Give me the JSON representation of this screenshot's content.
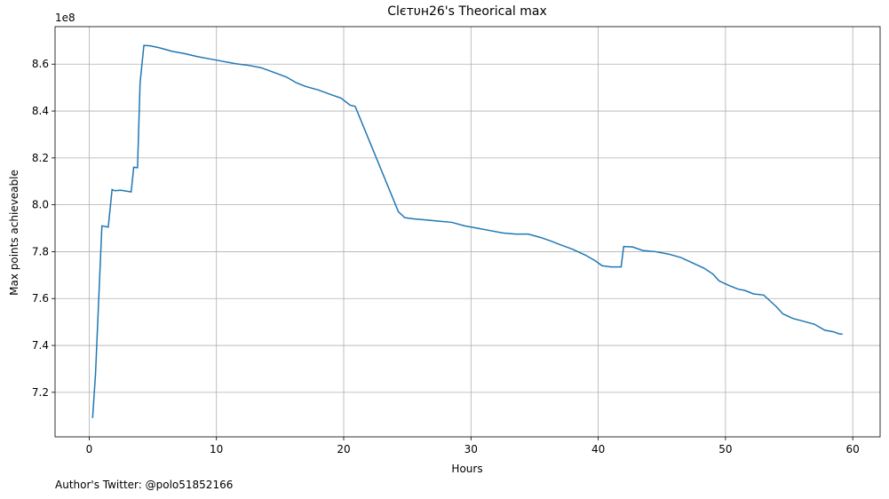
{
  "chart_data": {
    "type": "line",
    "title": "Clєтυн26's Theorical max",
    "xlabel": "Hours",
    "ylabel": "Max points achieveable",
    "y_offset_label": "1e8",
    "footer": "Author's Twitter: @polo51852166",
    "x": [
      0.27,
      0.5,
      1.0,
      1.5,
      1.8,
      2.0,
      2.5,
      3.3,
      3.5,
      3.8,
      4.0,
      4.3,
      4.8,
      5.5,
      6.5,
      7.5,
      8.5,
      9.5,
      10.5,
      11.5,
      12.5,
      13.5,
      14.5,
      15.5,
      16.3,
      17.0,
      18.0,
      19.0,
      19.8,
      20.5,
      20.9,
      24.3,
      24.8,
      25.5,
      26.5,
      27.5,
      28.5,
      29.5,
      30.5,
      31.5,
      32.5,
      33.5,
      34.5,
      35.5,
      36.3,
      37.0,
      38.0,
      39.0,
      39.8,
      40.3,
      41.0,
      41.8,
      42.0,
      42.7,
      43.5,
      44.5,
      45.5,
      46.5,
      47.5,
      48.3,
      49.0,
      49.5,
      50.3,
      51.0,
      51.5,
      52.2,
      53.0,
      53.5,
      54.0,
      54.5,
      55.3,
      56.0,
      57.0,
      57.8,
      58.5,
      58.9,
      59.2
    ],
    "series": [
      {
        "name": "Max points achieveable",
        "color": "#1f77b4",
        "values": [
          7.09,
          7.28,
          7.91,
          7.905,
          8.065,
          8.06,
          8.062,
          8.055,
          8.16,
          8.158,
          8.52,
          8.68,
          8.678,
          8.67,
          8.655,
          8.645,
          8.632,
          8.622,
          8.612,
          8.602,
          8.595,
          8.585,
          8.565,
          8.545,
          8.52,
          8.505,
          8.49,
          8.47,
          8.455,
          8.425,
          8.42,
          7.97,
          7.945,
          7.94,
          7.935,
          7.93,
          7.925,
          7.91,
          7.9,
          7.89,
          7.88,
          7.875,
          7.875,
          7.86,
          7.845,
          7.83,
          7.81,
          7.785,
          7.76,
          7.74,
          7.735,
          7.735,
          7.822,
          7.82,
          7.805,
          7.8,
          7.79,
          7.775,
          7.75,
          7.73,
          7.705,
          7.675,
          7.655,
          7.64,
          7.635,
          7.62,
          7.615,
          7.59,
          7.565,
          7.535,
          7.515,
          7.505,
          7.49,
          7.465,
          7.458,
          7.45,
          7.448
        ]
      }
    ],
    "xlim": [
      -2.68,
      62.15
    ],
    "ylim": [
      7.01,
      8.76
    ],
    "xticks": [
      0,
      10,
      20,
      30,
      40,
      50,
      60
    ],
    "yticks": [
      7.2,
      7.4,
      7.6,
      7.8,
      {
        "value": 8,
        "label": "8.0"
      },
      8.2,
      8.4,
      8.6
    ],
    "grid": true
  }
}
